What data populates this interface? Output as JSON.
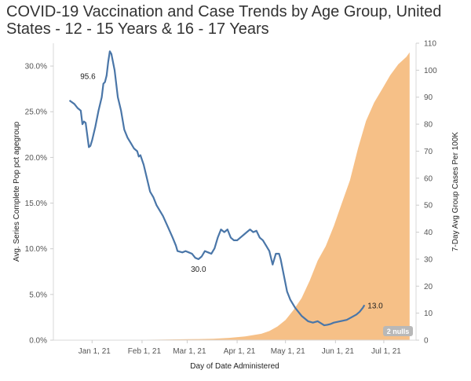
{
  "chart_data": {
    "type": "line",
    "title": "COVID-19 Vaccination and Case Trends by Age Group, United States - 12 - 15 Years & 16 - 17 Years",
    "xlabel": "Day of Date Administered",
    "ylabel_left": "Avg. Series Complete Pop pct agegroup",
    "ylabel_right": "7-Day Avg Group Cases Per 100K",
    "x_ticks": [
      {
        "label": "Jan 1, 21",
        "day": 0
      },
      {
        "label": "Feb 1, 21",
        "day": 31
      },
      {
        "label": "Mar 1, 21",
        "day": 59
      },
      {
        "label": "Apr 1, 21",
        "day": 90
      },
      {
        "label": "May 1, 21",
        "day": 120
      },
      {
        "label": "Jun 1, 21",
        "day": 151
      },
      {
        "label": "Jul 1, 21",
        "day": 181
      }
    ],
    "xlim": [
      -24,
      201
    ],
    "left_axis": {
      "ylim": [
        0,
        32.5
      ],
      "ticks": [
        0,
        5,
        10,
        15,
        20,
        25,
        30
      ],
      "tick_labels": [
        "0.0%",
        "5.0%",
        "10.0%",
        "15.0%",
        "20.0%",
        "25.0%",
        "30.0%"
      ]
    },
    "right_axis": {
      "ylim": [
        0,
        110
      ],
      "ticks": [
        0,
        10,
        20,
        30,
        40,
        50,
        60,
        70,
        80,
        90,
        100,
        110
      ],
      "tick_labels": [
        "0",
        "10",
        "20",
        "30",
        "40",
        "50",
        "60",
        "70",
        "80",
        "90",
        "100",
        "110"
      ]
    },
    "series": [
      {
        "name": "7-Day Avg Group Cases Per 100K",
        "axis": "right",
        "style": "line",
        "color": "#4a76a8",
        "points": [
          [
            -14,
            88.8
          ],
          [
            -11,
            87.5
          ],
          [
            -9,
            86.0
          ],
          [
            -7,
            85.0
          ],
          [
            -6,
            80.0
          ],
          [
            -5,
            81.0
          ],
          [
            -4,
            80.5
          ],
          [
            -2,
            71.5
          ],
          [
            -1,
            72.0
          ],
          [
            0,
            74.0
          ],
          [
            2,
            79.0
          ],
          [
            4,
            85.0
          ],
          [
            6,
            90.0
          ],
          [
            7,
            95.0
          ],
          [
            8,
            95.6
          ],
          [
            9,
            98.0
          ],
          [
            10,
            103.0
          ],
          [
            11,
            107.0
          ],
          [
            12,
            106.0
          ],
          [
            14,
            100.0
          ],
          [
            16,
            90.0
          ],
          [
            18,
            85.0
          ],
          [
            20,
            78.0
          ],
          [
            22,
            75.0
          ],
          [
            24,
            73.0
          ],
          [
            26,
            71.0
          ],
          [
            28,
            70.0
          ],
          [
            29,
            68.0
          ],
          [
            30,
            68.5
          ],
          [
            32,
            65.0
          ],
          [
            34,
            60.0
          ],
          [
            36,
            55.0
          ],
          [
            38,
            53.0
          ],
          [
            40,
            50.0
          ],
          [
            44,
            46.0
          ],
          [
            47,
            42.0
          ],
          [
            50,
            38.0
          ],
          [
            52,
            35.0
          ],
          [
            53,
            33.0
          ],
          [
            56,
            32.5
          ],
          [
            58,
            33.0
          ],
          [
            60,
            32.5
          ],
          [
            62,
            32.0
          ],
          [
            64,
            30.5
          ],
          [
            66,
            30.0
          ],
          [
            68,
            31.0
          ],
          [
            70,
            33.0
          ],
          [
            72,
            32.5
          ],
          [
            74,
            32.0
          ],
          [
            76,
            34.0
          ],
          [
            78,
            38.0
          ],
          [
            80,
            41.0
          ],
          [
            82,
            40.0
          ],
          [
            84,
            41.0
          ],
          [
            86,
            38.0
          ],
          [
            88,
            37.0
          ],
          [
            90,
            37.0
          ],
          [
            92,
            38.0
          ],
          [
            94,
            39.0
          ],
          [
            96,
            40.0
          ],
          [
            98,
            41.0
          ],
          [
            100,
            40.0
          ],
          [
            102,
            40.5
          ],
          [
            104,
            38.0
          ],
          [
            106,
            37.0
          ],
          [
            108,
            35.0
          ],
          [
            110,
            33.0
          ],
          [
            112,
            28.0
          ],
          [
            114,
            32.0
          ],
          [
            116,
            32.0
          ],
          [
            117,
            30.0
          ],
          [
            119,
            24.0
          ],
          [
            121,
            18.0
          ],
          [
            123,
            15.0
          ],
          [
            126,
            12.0
          ],
          [
            130,
            9.0
          ],
          [
            134,
            7.0
          ],
          [
            137,
            6.5
          ],
          [
            140,
            7.0
          ],
          [
            144,
            5.5
          ],
          [
            146,
            5.7
          ],
          [
            148,
            6.0
          ],
          [
            150,
            6.5
          ],
          [
            154,
            7.0
          ],
          [
            158,
            7.5
          ],
          [
            161,
            8.5
          ],
          [
            164,
            9.5
          ],
          [
            166,
            10.5
          ],
          [
            168,
            12.0
          ],
          [
            169,
            13.0
          ]
        ],
        "annotations": [
          {
            "text": "95.6",
            "day": 8,
            "value": 95.6
          },
          {
            "text": "30.0",
            "day": 66,
            "value": 30.0
          },
          {
            "text": "13.0",
            "day": 169,
            "value": 13.0
          }
        ]
      },
      {
        "name": "Avg. Series Complete Pop pct agegroup",
        "axis": "left",
        "style": "area",
        "color": "#f5b97a",
        "points": [
          [
            -20,
            0.0
          ],
          [
            20,
            0.03
          ],
          [
            40,
            0.05
          ],
          [
            60,
            0.1
          ],
          [
            75,
            0.15
          ],
          [
            85,
            0.25
          ],
          [
            95,
            0.4
          ],
          [
            105,
            0.7
          ],
          [
            110,
            1.0
          ],
          [
            115,
            1.5
          ],
          [
            120,
            2.2
          ],
          [
            125,
            3.3
          ],
          [
            130,
            4.6
          ],
          [
            135,
            6.5
          ],
          [
            140,
            8.7
          ],
          [
            145,
            10.3
          ],
          [
            150,
            12.5
          ],
          [
            155,
            15.0
          ],
          [
            160,
            17.5
          ],
          [
            165,
            21.0
          ],
          [
            170,
            24.0
          ],
          [
            175,
            26.0
          ],
          [
            180,
            27.5
          ],
          [
            185,
            29.0
          ],
          [
            190,
            30.2
          ],
          [
            195,
            31.0
          ],
          [
            197,
            31.5
          ]
        ]
      }
    ],
    "nulls_badge": "2 nulls"
  }
}
